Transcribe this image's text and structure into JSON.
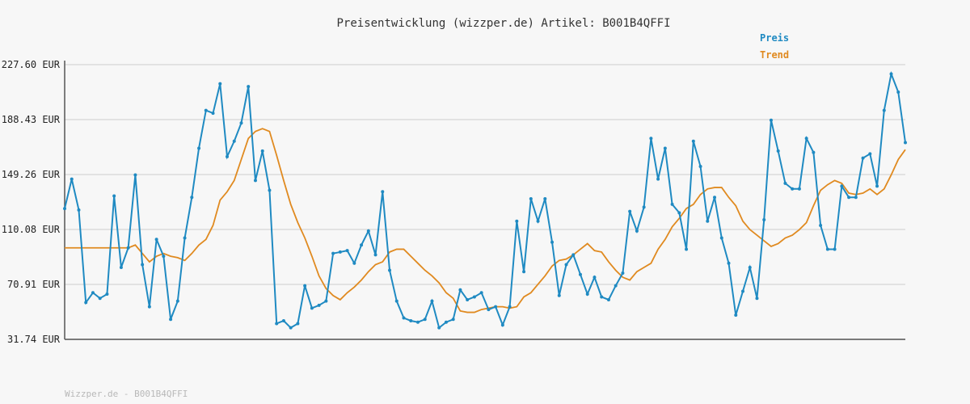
{
  "chart_data": {
    "type": "line",
    "title": "Preisentwicklung (wizzper.de) Artikel: B001B4QFFI",
    "footer": "Wizzper.de - B001B4QFFI",
    "ylim": [
      31.74,
      227.6
    ],
    "y_ticks": [
      "31.74 EUR",
      "70.91 EUR",
      "110.08 EUR",
      "149.26 EUR",
      "188.43 EUR",
      "227.60 EUR"
    ],
    "y_tick_values": [
      31.74,
      70.91,
      110.08,
      149.26,
      188.43,
      227.6
    ],
    "grid": true,
    "legend_position": "top-right",
    "colors": {
      "preis": "#1f8ac2",
      "trend": "#e08a20",
      "grid": "#dcdcdc",
      "axis": "#555555"
    },
    "series": [
      {
        "name": "Preis",
        "values": [
          125,
          146,
          124,
          58,
          65,
          61,
          64,
          134,
          83,
          97,
          149,
          85,
          55,
          103,
          91,
          46,
          59,
          104,
          133,
          168,
          195,
          193,
          214,
          162,
          173,
          186,
          212,
          145,
          166,
          138,
          43,
          45,
          40,
          43,
          70,
          54,
          56,
          59,
          93,
          94,
          95,
          86,
          99,
          109,
          92,
          137,
          81,
          59,
          47,
          45,
          44,
          46,
          59,
          40,
          44,
          46,
          67,
          60,
          62,
          65,
          53,
          55,
          42,
          55,
          116,
          80,
          132,
          116,
          132,
          101,
          63,
          85,
          92,
          78,
          64,
          76,
          62,
          60,
          70,
          79,
          123,
          109,
          126,
          175,
          146,
          168,
          128,
          122,
          96,
          173,
          155,
          116,
          133,
          104,
          86,
          49,
          66,
          83,
          61,
          117,
          188,
          166,
          143,
          139,
          139,
          175,
          165,
          113,
          96,
          96,
          141,
          133,
          133,
          161,
          164,
          141,
          195,
          221,
          208,
          172
        ]
      },
      {
        "name": "Trend",
        "values": [
          97,
          97,
          97,
          97,
          97,
          97,
          97,
          97,
          97,
          97,
          99,
          93,
          87,
          91,
          93,
          91,
          90,
          88,
          93,
          99,
          103,
          113,
          131,
          137,
          145,
          160,
          175,
          180,
          182,
          180,
          163,
          145,
          128,
          115,
          104,
          91,
          77,
          68,
          63,
          60,
          65,
          69,
          74,
          80,
          85,
          87,
          94,
          96,
          96,
          91,
          86,
          81,
          77,
          72,
          65,
          61,
          52,
          51,
          51,
          53,
          54,
          55,
          55,
          54,
          55,
          62,
          65,
          71,
          77,
          84,
          88,
          89,
          92,
          96,
          100,
          95,
          94,
          87,
          81,
          76,
          74,
          80,
          83,
          86,
          96,
          103,
          112,
          118,
          125,
          128,
          135,
          139,
          140,
          140,
          133,
          127,
          116,
          110,
          106,
          102,
          98,
          100,
          104,
          106,
          110,
          115,
          127,
          138,
          142,
          145,
          143,
          136,
          135,
          136,
          139,
          135,
          139,
          149,
          160,
          167
        ]
      }
    ]
  }
}
